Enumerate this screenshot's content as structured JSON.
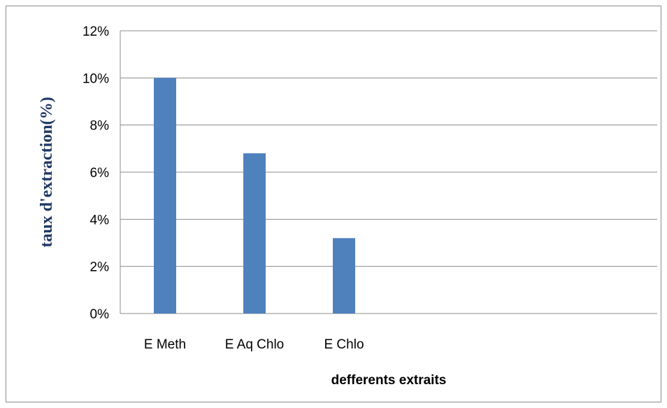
{
  "chart_data": {
    "type": "bar",
    "title": "",
    "xlabel": "defferents extraits",
    "ylabel": "taux d'extraction(%)",
    "categories": [
      "E Meth",
      "E Aq Chlo",
      "E Chlo"
    ],
    "values": [
      0.1,
      0.068,
      0.032
    ],
    "ylim": [
      0,
      0.12
    ],
    "yticks": [
      "0%",
      "2%",
      "4%",
      "6%",
      "8%",
      "10%",
      "12%"
    ],
    "ytick_values": [
      0,
      0.02,
      0.04,
      0.06,
      0.08,
      0.1,
      0.12
    ],
    "grid": true,
    "legend": "none",
    "bar_color": "#4f81bd"
  }
}
